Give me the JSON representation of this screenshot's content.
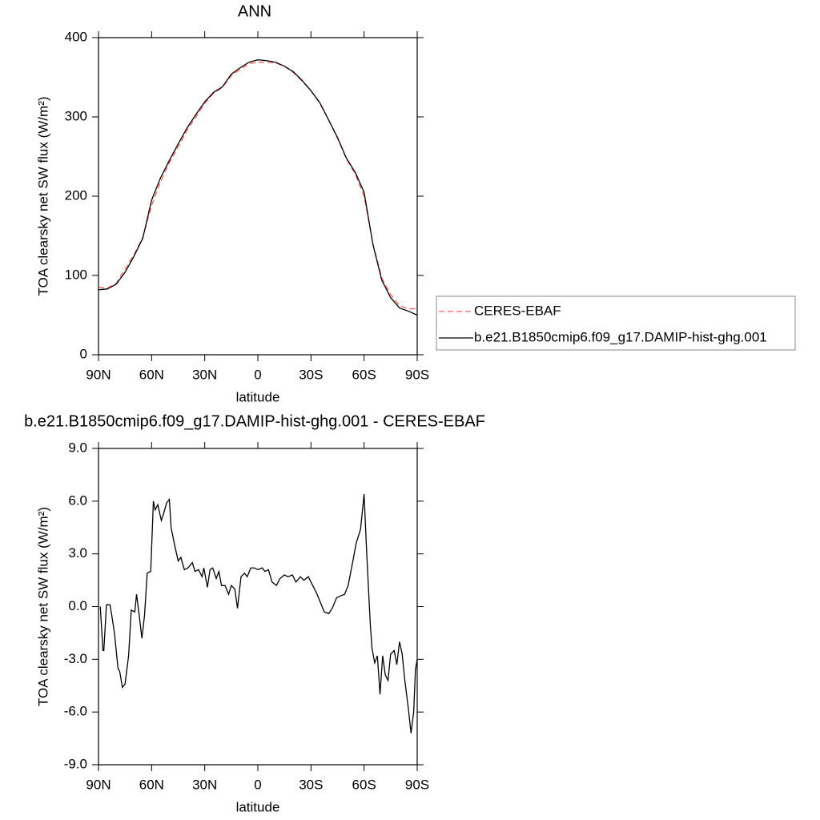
{
  "chart_data": [
    {
      "type": "line",
      "title": "ANN",
      "xlabel": "latitude",
      "ylabel": "TOA clearsky net SW flux (W/m²)",
      "x": [
        90,
        85,
        80,
        75,
        70,
        65,
        60,
        55,
        50,
        45,
        40,
        35,
        30,
        25,
        20,
        15,
        10,
        5,
        0,
        -5,
        -10,
        -15,
        -20,
        -25,
        -30,
        -35,
        -40,
        -45,
        -50,
        -55,
        -60,
        -65,
        -70,
        -75,
        -80,
        -85,
        -90
      ],
      "series": [
        {
          "name": "CERES-EBAF",
          "color": "#ff6060",
          "line_style": "dashed",
          "values": [
            85,
            84,
            90,
            108,
            126,
            148,
            188,
            218,
            242,
            262,
            283,
            300,
            317,
            330,
            337,
            352,
            360,
            367,
            369,
            369,
            368,
            364,
            356,
            345,
            333,
            317,
            296,
            273,
            247,
            228,
            200,
            140,
            97,
            76,
            62,
            58,
            58
          ]
        },
        {
          "name": "b.e21.B1850cmip6.f09_g17.DAMIP-hist-ghg.001",
          "color": "#000000",
          "line_style": "solid",
          "values": [
            82,
            83,
            89,
            104,
            124,
            147,
            195,
            223,
            245,
            266,
            286,
            303,
            319,
            331,
            338,
            354,
            362,
            369,
            372,
            371,
            369,
            364,
            357,
            346,
            333,
            318,
            296,
            274,
            248,
            230,
            205,
            139,
            94,
            72,
            59,
            55,
            50
          ]
        }
      ],
      "xlim": [
        90,
        -90
      ],
      "xticks": [
        {
          "value": 90,
          "label": "90N"
        },
        {
          "value": 60,
          "label": "60N"
        },
        {
          "value": 30,
          "label": "30N"
        },
        0,
        {
          "value": -30,
          "label": "30S"
        },
        {
          "value": -60,
          "label": "60S"
        },
        {
          "value": -90,
          "label": "90S"
        }
      ],
      "ylim": [
        0,
        400
      ],
      "yticks": [
        0,
        100,
        200,
        300,
        400
      ],
      "legend": "right"
    },
    {
      "type": "line",
      "title": "b.e21.B1850cmip6.f09_g17.DAMIP-hist-ghg.001 - CERES-EBAF",
      "xlabel": "latitude",
      "ylabel": "TOA clearsky net SW flux (W/m²)",
      "x": [
        89,
        87.5,
        87,
        85.5,
        83.5,
        82.5,
        81,
        79,
        78,
        76.5,
        75,
        73,
        71.5,
        69.5,
        68.5,
        67,
        65.5,
        64,
        62.5,
        60.5,
        59,
        58,
        56.5,
        54.5,
        53.5,
        51.5,
        50,
        49,
        47,
        45,
        43.5,
        41.5,
        39.5,
        37,
        35.5,
        33.5,
        31.5,
        30.5,
        28.5,
        27,
        25.5,
        23.5,
        22,
        20.5,
        18.5,
        16.5,
        15,
        13,
        11.5,
        9.5,
        7.5,
        6,
        4,
        2,
        0,
        -2.5,
        -4,
        -6,
        -8,
        -10.5,
        -12.5,
        -15,
        -17,
        -19.5,
        -21.5,
        -24,
        -26,
        -28.5,
        -31,
        -33,
        -35.5,
        -37.5,
        -40,
        -42,
        -44.5,
        -46.5,
        -49,
        -51,
        -53.5,
        -55.5,
        -58,
        -60,
        -61.5,
        -63.5,
        -64.5,
        -66,
        -67.5,
        -69,
        -70.5,
        -72,
        -73.5,
        -75,
        -77,
        -78.5,
        -80,
        -81.5,
        -83,
        -85,
        -86.5,
        -88,
        -89,
        -90
      ],
      "series": [
        {
          "color": "#000000",
          "line_style": "solid",
          "values": [
            0,
            -2.5,
            -2.5,
            0.1,
            0.1,
            -0.5,
            -1.5,
            -3.5,
            -3.7,
            -4.6,
            -4.4,
            -2.8,
            -0.2,
            -0.3,
            0.7,
            -0.5,
            -1.8,
            -0.5,
            1.9,
            2.0,
            6.0,
            5.5,
            5.8,
            4.9,
            5.2,
            5.9,
            6.1,
            4.5,
            3.5,
            2.6,
            2.8,
            2.1,
            2.2,
            2.5,
            2.0,
            2.1,
            1.7,
            2.2,
            1.1,
            2.1,
            2.2,
            1.6,
            2.0,
            1.2,
            1.2,
            0.7,
            1.2,
            1.0,
            -0.1,
            1.7,
            1.9,
            1.7,
            2.2,
            2.2,
            2.1,
            2.2,
            2.0,
            2.1,
            1.4,
            1.2,
            1.6,
            1.8,
            1.7,
            1.8,
            1.4,
            1.7,
            1.5,
            1.7,
            1.2,
            0.8,
            0.2,
            -0.3,
            -0.4,
            -0.1,
            0.5,
            0.6,
            0.7,
            1.2,
            2.5,
            3.6,
            4.4,
            6.4,
            3.0,
            -1.0,
            -2.4,
            -3.2,
            -2.8,
            -5.0,
            -2.8,
            -3.9,
            -4.2,
            -2.7,
            -2.5,
            -3.3,
            -2.0,
            -2.7,
            -4.2,
            -5.8,
            -7.2,
            -6.0,
            -3.6,
            -3.0
          ]
        }
      ],
      "xlim": [
        90,
        -90
      ],
      "xticks": [
        {
          "value": 90,
          "label": "90N"
        },
        {
          "value": 60,
          "label": "60N"
        },
        {
          "value": 30,
          "label": "30N"
        },
        0,
        {
          "value": -30,
          "label": "30S"
        },
        {
          "value": -60,
          "label": "60S"
        },
        {
          "value": -90,
          "label": "90S"
        }
      ],
      "ylim": [
        -9,
        9
      ],
      "yticks": [
        {
          "value": -9,
          "label": "-9.0"
        },
        {
          "value": -6,
          "label": "-6.0"
        },
        {
          "value": -3,
          "label": "-3.0"
        },
        {
          "value": 0,
          "label": "0.0"
        },
        {
          "value": 3,
          "label": "3.0"
        },
        {
          "value": 6,
          "label": "6.0"
        },
        {
          "value": 9,
          "label": "9.0"
        }
      ]
    }
  ]
}
